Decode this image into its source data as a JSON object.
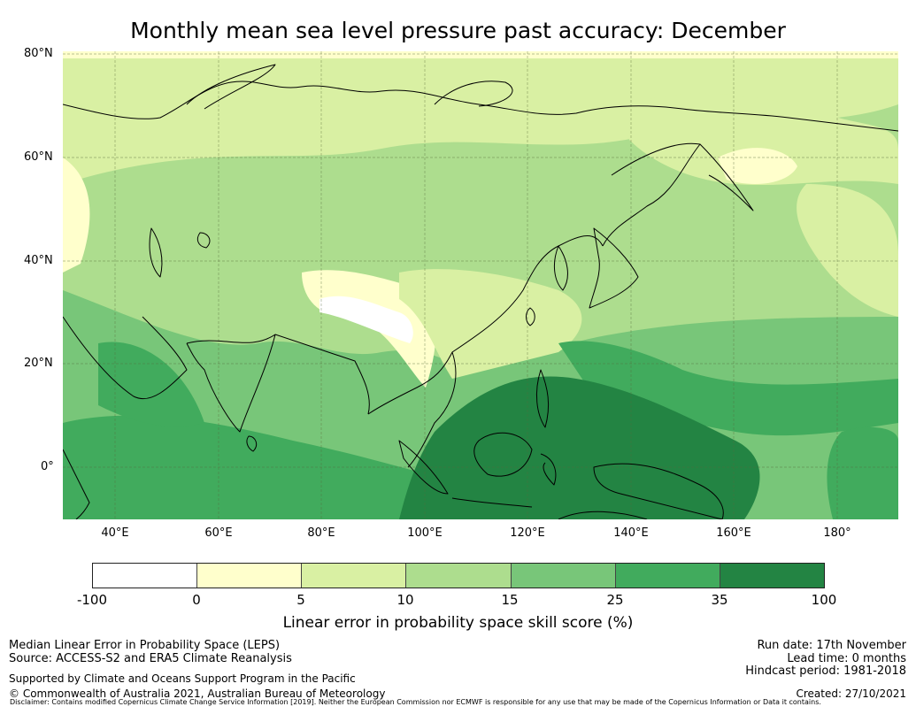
{
  "title": "Monthly mean sea level pressure past accuracy: December",
  "map": {
    "lat_labels": [
      "80°N",
      "60°N",
      "40°N",
      "20°N",
      "0°"
    ],
    "lon_labels": [
      "40°E",
      "60°E",
      "80°E",
      "100°E",
      "120°E",
      "140°E",
      "160°E",
      "180°"
    ]
  },
  "colorbar": {
    "ticks": [
      "-100",
      "0",
      "5",
      "10",
      "15",
      "25",
      "35",
      "100"
    ],
    "colors": [
      "#ffffff",
      "#ffffcc",
      "#d9f0a3",
      "#addd8e",
      "#78c679",
      "#41ab5d",
      "#238443"
    ],
    "label": "Linear error in probability space skill score (%)"
  },
  "footer": {
    "left1": "Median Linear Error in Probability Space (LEPS)",
    "left2": "Source: ACCESS-S2 and ERA5 Climate Reanalysis",
    "left3": "Supported by Climate and Oceans Support Program in the Pacific",
    "left4": "© Commonwealth of Australia 2021, Australian Bureau of Meteorology",
    "right1": "Run date: 17th November",
    "right2": "Lead time: 0 months",
    "right3": "Hindcast period: 1981-2018",
    "right4": "Created: 27/10/2021",
    "disclaimer": "Disclaimer: Contains modified Copernicus Climate Change Service Information [2019]. Neither the European Commission nor ECMWF is responsible for any use that may be made of the Copernicus Information or Data it contains."
  }
}
